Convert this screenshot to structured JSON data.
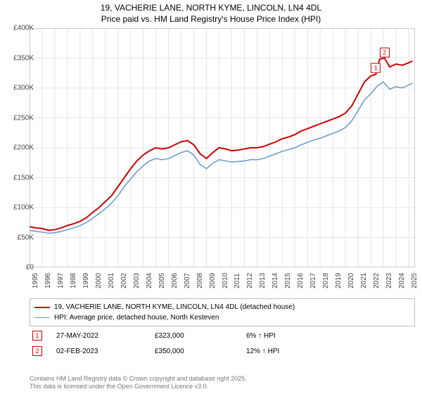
{
  "title_line1": "19, VACHERIE LANE, NORTH KYME, LINCOLN, LN4 4DL",
  "title_line2": "Price paid vs. HM Land Registry's House Price Index (HPI)",
  "chart": {
    "type": "line",
    "background_color": "#ffffff",
    "grid_color": "#e5e5e5",
    "y": {
      "min": 0,
      "max": 400000,
      "step": 50000,
      "ticks": [
        0,
        50000,
        100000,
        150000,
        200000,
        250000,
        300000,
        350000,
        400000
      ],
      "tick_labels": [
        "£0",
        "£50K",
        "£100K",
        "£150K",
        "£200K",
        "£250K",
        "£300K",
        "£350K",
        "£400K"
      ],
      "label_fontsize": 10
    },
    "x": {
      "min": 1995,
      "max": 2025.5,
      "ticks": [
        1995,
        1996,
        1997,
        1998,
        1999,
        2000,
        2001,
        2002,
        2003,
        2004,
        2005,
        2006,
        2007,
        2008,
        2009,
        2010,
        2011,
        2012,
        2013,
        2014,
        2015,
        2016,
        2017,
        2018,
        2019,
        2020,
        2021,
        2022,
        2023,
        2024,
        2025
      ],
      "label_fontsize": 10
    },
    "series": [
      {
        "name": "price_paid",
        "label": "19, VACHERIE LANE, NORTH KYME, LINCOLN, LN4 4DL (detached house)",
        "color": "#cc0000",
        "line_width": 2,
        "data": [
          [
            1995,
            68
          ],
          [
            1995.5,
            66
          ],
          [
            1996,
            65
          ],
          [
            1996.5,
            62
          ],
          [
            1997,
            63
          ],
          [
            1997.5,
            66
          ],
          [
            1998,
            70
          ],
          [
            1998.5,
            73
          ],
          [
            1999,
            77
          ],
          [
            1999.5,
            83
          ],
          [
            2000,
            92
          ],
          [
            2000.5,
            100
          ],
          [
            2001,
            110
          ],
          [
            2001.5,
            120
          ],
          [
            2002,
            135
          ],
          [
            2002.5,
            150
          ],
          [
            2003,
            165
          ],
          [
            2003.5,
            178
          ],
          [
            2004,
            188
          ],
          [
            2004.5,
            195
          ],
          [
            2005,
            200
          ],
          [
            2005.5,
            198
          ],
          [
            2006,
            200
          ],
          [
            2006.5,
            205
          ],
          [
            2007,
            210
          ],
          [
            2007.5,
            212
          ],
          [
            2008,
            205
          ],
          [
            2008.5,
            190
          ],
          [
            2009,
            182
          ],
          [
            2009.5,
            192
          ],
          [
            2010,
            200
          ],
          [
            2010.5,
            198
          ],
          [
            2011,
            195
          ],
          [
            2011.5,
            196
          ],
          [
            2012,
            198
          ],
          [
            2012.5,
            200
          ],
          [
            2013,
            200
          ],
          [
            2013.5,
            202
          ],
          [
            2014,
            206
          ],
          [
            2014.5,
            210
          ],
          [
            2015,
            215
          ],
          [
            2015.5,
            218
          ],
          [
            2016,
            222
          ],
          [
            2016.5,
            228
          ],
          [
            2017,
            232
          ],
          [
            2017.5,
            236
          ],
          [
            2018,
            240
          ],
          [
            2018.5,
            244
          ],
          [
            2019,
            248
          ],
          [
            2019.5,
            252
          ],
          [
            2020,
            258
          ],
          [
            2020.5,
            270
          ],
          [
            2021,
            290
          ],
          [
            2021.5,
            310
          ],
          [
            2022,
            320
          ],
          [
            2022.41,
            323
          ],
          [
            2022.7,
            348
          ],
          [
            2023.09,
            350
          ],
          [
            2023.5,
            335
          ],
          [
            2024,
            340
          ],
          [
            2024.5,
            338
          ],
          [
            2025,
            342
          ],
          [
            2025.3,
            345
          ]
        ]
      },
      {
        "name": "hpi",
        "label": "HPI: Average price, detached house, North Kesteven",
        "color": "#6699cc",
        "line_width": 1.5,
        "data": [
          [
            1995,
            62
          ],
          [
            1995.5,
            60
          ],
          [
            1996,
            59
          ],
          [
            1996.5,
            57
          ],
          [
            1997,
            58
          ],
          [
            1997.5,
            60
          ],
          [
            1998,
            63
          ],
          [
            1998.5,
            66
          ],
          [
            1999,
            70
          ],
          [
            1999.5,
            75
          ],
          [
            2000,
            82
          ],
          [
            2000.5,
            90
          ],
          [
            2001,
            98
          ],
          [
            2001.5,
            108
          ],
          [
            2002,
            120
          ],
          [
            2002.5,
            135
          ],
          [
            2003,
            148
          ],
          [
            2003.5,
            160
          ],
          [
            2004,
            170
          ],
          [
            2004.5,
            178
          ],
          [
            2005,
            182
          ],
          [
            2005.5,
            180
          ],
          [
            2006,
            182
          ],
          [
            2006.5,
            187
          ],
          [
            2007,
            192
          ],
          [
            2007.5,
            195
          ],
          [
            2008,
            188
          ],
          [
            2008.5,
            172
          ],
          [
            2009,
            165
          ],
          [
            2009.5,
            174
          ],
          [
            2010,
            180
          ],
          [
            2010.5,
            178
          ],
          [
            2011,
            176
          ],
          [
            2011.5,
            177
          ],
          [
            2012,
            178
          ],
          [
            2012.5,
            180
          ],
          [
            2013,
            180
          ],
          [
            2013.5,
            182
          ],
          [
            2014,
            186
          ],
          [
            2014.5,
            190
          ],
          [
            2015,
            194
          ],
          [
            2015.5,
            197
          ],
          [
            2016,
            200
          ],
          [
            2016.5,
            205
          ],
          [
            2017,
            209
          ],
          [
            2017.5,
            213
          ],
          [
            2018,
            216
          ],
          [
            2018.5,
            220
          ],
          [
            2019,
            224
          ],
          [
            2019.5,
            228
          ],
          [
            2020,
            234
          ],
          [
            2020.5,
            245
          ],
          [
            2021,
            262
          ],
          [
            2021.5,
            280
          ],
          [
            2022,
            290
          ],
          [
            2022.5,
            303
          ],
          [
            2023,
            310
          ],
          [
            2023.5,
            298
          ],
          [
            2024,
            302
          ],
          [
            2024.5,
            300
          ],
          [
            2025,
            305
          ],
          [
            2025.3,
            308
          ]
        ]
      }
    ],
    "markers": [
      {
        "n": "1",
        "year": 2022.41,
        "value": 323,
        "color": "#cc0000"
      },
      {
        "n": "2",
        "year": 2023.09,
        "value": 350,
        "color": "#cc0000"
      }
    ]
  },
  "legend": {
    "items": [
      {
        "color": "#cc0000",
        "width": 2,
        "label": "19, VACHERIE LANE, NORTH KYME, LINCOLN, LN4 4DL (detached house)"
      },
      {
        "color": "#6699cc",
        "width": 1.5,
        "label": "HPI: Average price, detached house, North Kesteven"
      }
    ]
  },
  "sales": [
    {
      "n": "1",
      "color": "#cc0000",
      "date": "27-MAY-2022",
      "price": "£323,000",
      "pct": "6% ↑ HPI"
    },
    {
      "n": "2",
      "color": "#cc0000",
      "date": "02-FEB-2023",
      "price": "£350,000",
      "pct": "12% ↑ HPI"
    }
  ],
  "footnote_line1": "Contains HM Land Registry data © Crown copyright and database right 2025.",
  "footnote_line2": "This data is licensed under the Open Government Licence v3.0."
}
